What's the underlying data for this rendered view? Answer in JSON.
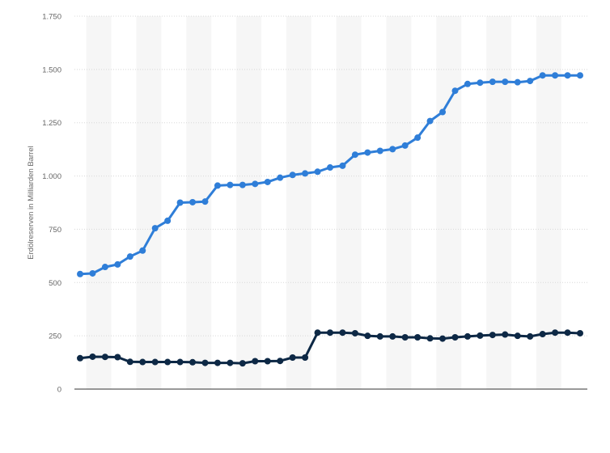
{
  "chart_data": {
    "type": "line",
    "title": "",
    "xlabel": "",
    "ylabel": "Erdölreserven in Milliarden Barrel",
    "ylim": [
      0,
      1750
    ],
    "yticks": [
      0,
      250,
      500,
      750,
      1000,
      1250,
      1500,
      1750
    ],
    "ytick_labels": [
      "0",
      "250",
      "500",
      "750",
      "1.000",
      "1.250",
      "1.500",
      "1.750"
    ],
    "grid": true,
    "legend": "none",
    "n_points": 41,
    "series": [
      {
        "color": "#2f7ed8",
        "values": [
          540,
          543,
          573,
          585,
          622,
          650,
          755,
          790,
          875,
          877,
          880,
          955,
          958,
          958,
          963,
          972,
          992,
          1005,
          1012,
          1020,
          1040,
          1048,
          1100,
          1110,
          1118,
          1126,
          1143,
          1180,
          1258,
          1300,
          1400,
          1432,
          1438,
          1442,
          1442,
          1440,
          1446,
          1472,
          1472,
          1472,
          1472
        ]
      },
      {
        "color": "#0d2845",
        "values": [
          145,
          152,
          151,
          150,
          128,
          127,
          127,
          127,
          127,
          126,
          123,
          123,
          123,
          121,
          131,
          131,
          132,
          148,
          148,
          265,
          265,
          265,
          262,
          250,
          247,
          247,
          243,
          243,
          238,
          237,
          243,
          247,
          251,
          254,
          256,
          250,
          247,
          258,
          265,
          265,
          262
        ]
      }
    ]
  }
}
